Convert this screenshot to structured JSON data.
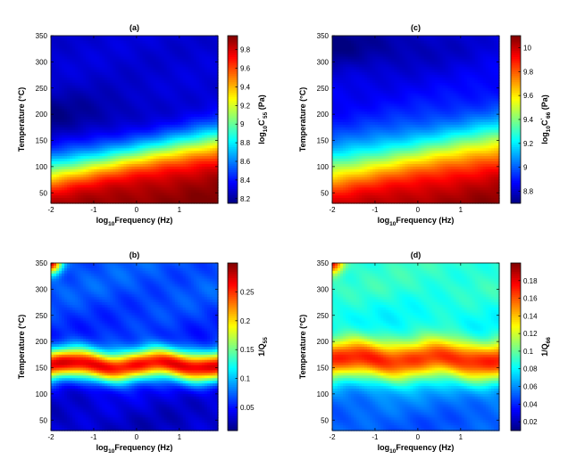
{
  "chart_data": [
    {
      "type": "heatmap",
      "title": "(a)",
      "xlabel": "Frequency (Hz)",
      "xlabel_prefix": "log",
      "xlabel_sub": "10",
      "ylabel": "Temperature (°C)",
      "xlim": [
        -2,
        1.9
      ],
      "ylim": [
        30,
        350
      ],
      "xticks": [
        "-2",
        "-1",
        "0",
        "1"
      ],
      "xtick_values": [
        -2,
        -1,
        0,
        1
      ],
      "yticks": [
        "50",
        "100",
        "150",
        "200",
        "250",
        "300",
        "350"
      ],
      "ytick_values": [
        50,
        100,
        150,
        200,
        250,
        300,
        350
      ],
      "colorbar": {
        "label_prefix": "log",
        "label_sub": "10",
        "label_main": "C",
        "label_prime": "'",
        "label_sub2": "55",
        "label_unit": " (Pa)",
        "range": [
          8.15,
          9.95
        ],
        "ticks": [
          "8.2",
          "8.4",
          "8.6",
          "8.8",
          "9",
          "9.2",
          "9.4",
          "9.6",
          "9.8"
        ],
        "tick_values": [
          8.2,
          8.4,
          8.6,
          8.8,
          9.0,
          9.2,
          9.4,
          9.6,
          9.8
        ]
      },
      "field": {
        "kind": "modulus",
        "cold_value": 9.95,
        "hot_value": 8.3,
        "hot_min_value": 8.15,
        "hot_min_temp": 190,
        "transition_temp_at_x_min": 90,
        "transition_temp_at_x_max": 148,
        "transition_width": 22
      }
    },
    {
      "type": "heatmap",
      "title": "(c)",
      "xlabel": "Frequency (Hz)",
      "xlabel_prefix": "log",
      "xlabel_sub": "10",
      "ylabel": "Temperature (°C)",
      "xlim": [
        -2,
        1.9
      ],
      "ylim": [
        30,
        350
      ],
      "xticks": [
        "-2",
        "-1",
        "0",
        "1"
      ],
      "xtick_values": [
        -2,
        -1,
        0,
        1
      ],
      "yticks": [
        "50",
        "100",
        "150",
        "200",
        "250",
        "300",
        "350"
      ],
      "ytick_values": [
        50,
        100,
        150,
        200,
        250,
        300,
        350
      ],
      "colorbar": {
        "label_prefix": "log",
        "label_sub": "10",
        "label_main": "C",
        "label_prime": "'",
        "label_sub2": "66",
        "label_unit": " (Pa)",
        "range": [
          8.7,
          10.1
        ],
        "ticks": [
          "8.8",
          "9",
          "9.2",
          "9.4",
          "9.6",
          "9.8",
          "10"
        ],
        "tick_values": [
          8.8,
          9.0,
          9.2,
          9.4,
          9.6,
          9.8,
          10.0
        ]
      },
      "field": {
        "kind": "modulus",
        "cold_value": 10.1,
        "hot_value": 8.85,
        "hot_min_value": 8.7,
        "hot_min_temp": 330,
        "transition_temp_at_x_min": 95,
        "transition_temp_at_x_max": 150,
        "transition_width": 30
      }
    },
    {
      "type": "heatmap",
      "title": "(b)",
      "xlabel": "Frequency (Hz)",
      "xlabel_prefix": "log",
      "xlabel_sub": "10",
      "ylabel": "Temperature (°C)",
      "xlim": [
        -2,
        1.9
      ],
      "ylim": [
        30,
        350
      ],
      "xticks": [
        "-2",
        "-1",
        "0",
        "1"
      ],
      "xtick_values": [
        -2,
        -1,
        0,
        1
      ],
      "yticks": [
        "50",
        "100",
        "150",
        "200",
        "250",
        "300",
        "350"
      ],
      "ytick_values": [
        50,
        100,
        150,
        200,
        250,
        300,
        350
      ],
      "colorbar": {
        "label_prefix": "1/Q",
        "label_sub": "55",
        "range": [
          0.01,
          0.3
        ],
        "ticks": [
          "0.05",
          "0.1",
          "0.15",
          "0.2",
          "0.25"
        ],
        "tick_values": [
          0.05,
          0.1,
          0.15,
          0.2,
          0.25
        ]
      },
      "field": {
        "kind": "damping",
        "peak_value": 0.29,
        "peak_temp": 155,
        "peak_width": 28,
        "background_high": 0.07,
        "background_low": 0.03,
        "corner_value": 0.28
      }
    },
    {
      "type": "heatmap",
      "title": "(d)",
      "xlabel": "Frequency (Hz)",
      "xlabel_prefix": "log",
      "xlabel_sub": "10",
      "ylabel": "Temperature (°C)",
      "xlim": [
        -2,
        1.9
      ],
      "ylim": [
        30,
        350
      ],
      "xticks": [
        "-2",
        "-1",
        "0",
        "1"
      ],
      "xtick_values": [
        -2,
        -1,
        0,
        1
      ],
      "yticks": [
        "50",
        "100",
        "150",
        "200",
        "250",
        "300",
        "350"
      ],
      "ytick_values": [
        50,
        100,
        150,
        200,
        250,
        300,
        350
      ],
      "colorbar": {
        "label_prefix": "1/Q",
        "label_sub": "66",
        "range": [
          0.01,
          0.2
        ],
        "ticks": [
          "0.02",
          "0.04",
          "0.06",
          "0.08",
          "0.1",
          "0.12",
          "0.14",
          "0.16",
          "0.18"
        ],
        "tick_values": [
          0.02,
          0.04,
          0.06,
          0.08,
          0.1,
          0.12,
          0.14,
          0.16,
          0.18
        ]
      },
      "field": {
        "kind": "damping",
        "peak_value": 0.19,
        "peak_temp": 165,
        "peak_width": 38,
        "background_high": 0.09,
        "background_low": 0.05,
        "corner_value": 0.18
      }
    }
  ]
}
